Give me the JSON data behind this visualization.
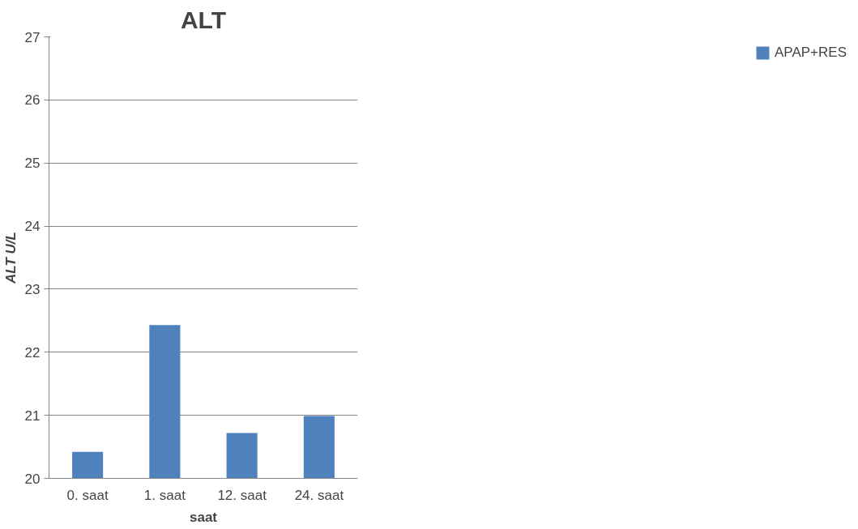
{
  "chart_data": {
    "type": "bar",
    "title": "ALT",
    "xlabel": "saat",
    "ylabel": "ALT U/L",
    "categories": [
      "0. saat",
      "1. saat",
      "12. saat",
      "24. saat"
    ],
    "series": [
      {
        "name": "APAP+RES",
        "color": "#4f81bd",
        "values": [
          20.42,
          22.43,
          20.72,
          20.99
        ]
      }
    ],
    "ylim": [
      20,
      27
    ],
    "yticks": [
      20,
      21,
      22,
      23,
      24,
      25,
      26,
      27
    ],
    "grid": "y",
    "legend": "right"
  }
}
